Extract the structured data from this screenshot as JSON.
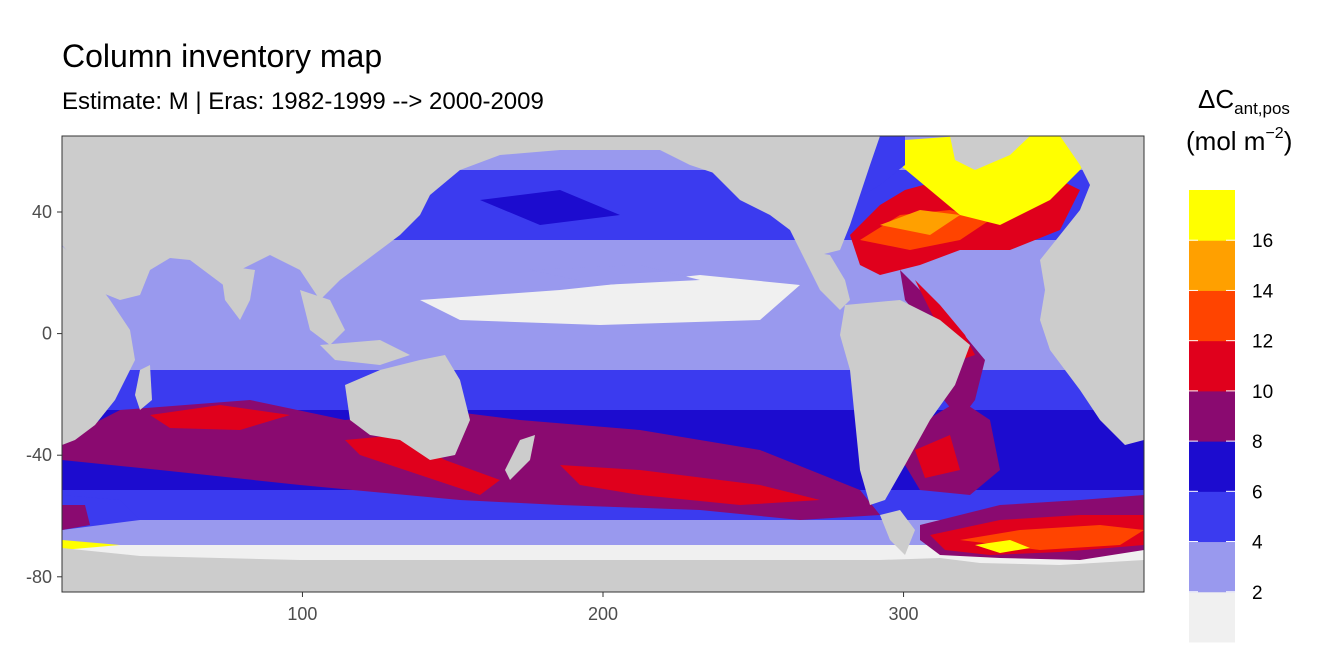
{
  "title": "Column inventory map",
  "subtitle": "Estimate: M  | Eras: 1982-1999 --> 2000-2009",
  "axes": {
    "x_ticks": [
      "100",
      "200",
      "300"
    ],
    "y_ticks": [
      "40",
      "0",
      "-40",
      "-80"
    ],
    "x_range": [
      20,
      380
    ],
    "y_range": [
      -85,
      65
    ]
  },
  "legend": {
    "title_main": "ΔC",
    "title_sub": "ant,pos",
    "unit_main": "(mol m",
    "unit_sup": "−2",
    "unit_close": ")",
    "labels": [
      "16",
      "14",
      "12",
      "10",
      "8",
      "6",
      "4",
      "2"
    ],
    "colors": [
      "#f0f0f0",
      "#9999ee",
      "#3b3bef",
      "#1c0ccf",
      "#8a0a70",
      "#e0001c",
      "#ff4400",
      "#ffa000",
      "#ffff00"
    ]
  },
  "colors": {
    "land": "#cccccc",
    "panel_border": "#333333"
  }
}
